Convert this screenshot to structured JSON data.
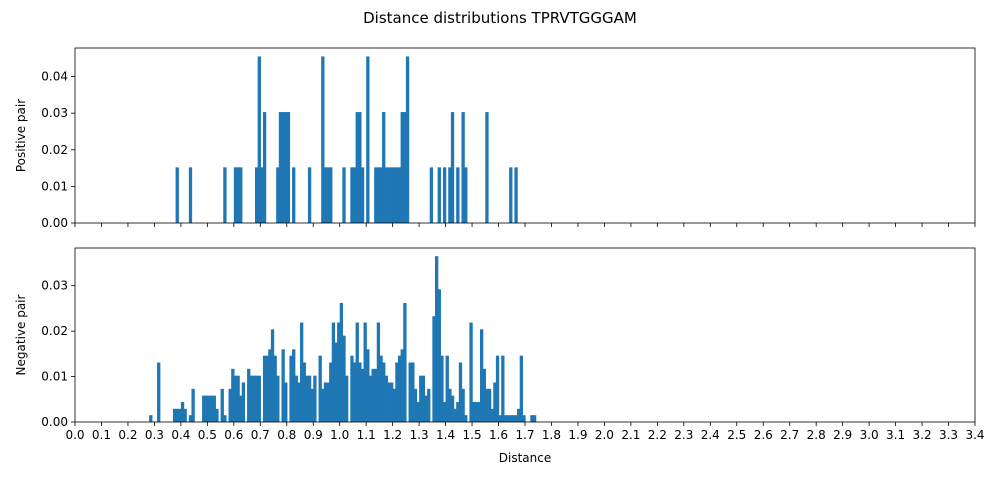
{
  "chart_data": {
    "type": "bar",
    "title": "Distance distributions TPRVTGGGAM",
    "xlabel": "Distance",
    "xlim": [
      0.0,
      3.4
    ],
    "bin_width": 0.0125,
    "bar_color": "#1f77b4",
    "xticks": [
      "0.0",
      "0.1",
      "0.2",
      "0.3",
      "0.4",
      "0.5",
      "0.6",
      "0.7",
      "0.8",
      "0.9",
      "1.0",
      "1.1",
      "1.2",
      "1.3",
      "1.4",
      "1.5",
      "1.6",
      "1.7",
      "1.8",
      "1.9",
      "2.0",
      "2.1",
      "2.2",
      "2.3",
      "2.4",
      "2.5",
      "2.6",
      "2.7",
      "2.8",
      "2.9",
      "3.0",
      "3.1",
      "3.2",
      "3.3",
      "3.4"
    ],
    "panels": [
      {
        "ylabel": "Positive pair",
        "ylim": [
          0,
          0.0478
        ],
        "yticks": [
          "0.00",
          "0.01",
          "0.02",
          "0.03",
          "0.04"
        ],
        "show_xtick_labels": false,
        "bars": [
          [
            0.38,
            0.0152
          ],
          [
            0.43,
            0.0152
          ],
          [
            0.56,
            0.0152
          ],
          [
            0.6,
            0.0152
          ],
          [
            0.61,
            0.0152
          ],
          [
            0.62,
            0.0152
          ],
          [
            0.68,
            0.0152
          ],
          [
            0.69,
            0.0455
          ],
          [
            0.7,
            0.0152
          ],
          [
            0.71,
            0.0303
          ],
          [
            0.76,
            0.0152
          ],
          [
            0.77,
            0.0303
          ],
          [
            0.78,
            0.0303
          ],
          [
            0.79,
            0.0303
          ],
          [
            0.8,
            0.0303
          ],
          [
            0.82,
            0.0152
          ],
          [
            0.88,
            0.0152
          ],
          [
            0.93,
            0.0455
          ],
          [
            0.94,
            0.0152
          ],
          [
            0.95,
            0.0152
          ],
          [
            0.96,
            0.0152
          ],
          [
            1.01,
            0.0152
          ],
          [
            1.04,
            0.0152
          ],
          [
            1.05,
            0.0152
          ],
          [
            1.06,
            0.0303
          ],
          [
            1.07,
            0.0303
          ],
          [
            1.08,
            0.0152
          ],
          [
            1.1,
            0.0455
          ],
          [
            1.13,
            0.0152
          ],
          [
            1.14,
            0.0152
          ],
          [
            1.15,
            0.0152
          ],
          [
            1.16,
            0.0303
          ],
          [
            1.17,
            0.0152
          ],
          [
            1.18,
            0.0152
          ],
          [
            1.19,
            0.0152
          ],
          [
            1.2,
            0.0152
          ],
          [
            1.21,
            0.0152
          ],
          [
            1.22,
            0.0152
          ],
          [
            1.23,
            0.0303
          ],
          [
            1.24,
            0.0303
          ],
          [
            1.25,
            0.0455
          ],
          [
            1.34,
            0.0152
          ],
          [
            1.37,
            0.0152
          ],
          [
            1.39,
            0.0152
          ],
          [
            1.41,
            0.0152
          ],
          [
            1.42,
            0.0303
          ],
          [
            1.44,
            0.0152
          ],
          [
            1.46,
            0.0303
          ],
          [
            1.47,
            0.0152
          ],
          [
            1.55,
            0.0303
          ],
          [
            1.64,
            0.0152
          ],
          [
            1.66,
            0.0152
          ]
        ]
      },
      {
        "ylabel": "Negative pair",
        "ylim": [
          0,
          0.0383
        ],
        "yticks": [
          "0.00",
          "0.01",
          "0.02",
          "0.03"
        ],
        "show_xtick_labels": true,
        "bars": [
          [
            0.28,
            0.0015
          ],
          [
            0.31,
            0.0131
          ],
          [
            0.37,
            0.0029
          ],
          [
            0.38,
            0.0029
          ],
          [
            0.39,
            0.0029
          ],
          [
            0.4,
            0.0044
          ],
          [
            0.41,
            0.0029
          ],
          [
            0.43,
            0.0015
          ],
          [
            0.44,
            0.0073
          ],
          [
            0.48,
            0.0058
          ],
          [
            0.49,
            0.0058
          ],
          [
            0.5,
            0.0058
          ],
          [
            0.51,
            0.0058
          ],
          [
            0.52,
            0.0058
          ],
          [
            0.53,
            0.0029
          ],
          [
            0.55,
            0.0073
          ],
          [
            0.56,
            0.0015
          ],
          [
            0.58,
            0.0073
          ],
          [
            0.59,
            0.0117
          ],
          [
            0.6,
            0.0102
          ],
          [
            0.61,
            0.0102
          ],
          [
            0.62,
            0.0058
          ],
          [
            0.63,
            0.0087
          ],
          [
            0.65,
            0.0117
          ],
          [
            0.66,
            0.0102
          ],
          [
            0.67,
            0.0102
          ],
          [
            0.68,
            0.0102
          ],
          [
            0.69,
            0.0102
          ],
          [
            0.71,
            0.0146
          ],
          [
            0.72,
            0.0146
          ],
          [
            0.73,
            0.016
          ],
          [
            0.74,
            0.0204
          ],
          [
            0.75,
            0.0146
          ],
          [
            0.76,
            0.0102
          ],
          [
            0.78,
            0.016
          ],
          [
            0.79,
            0.0087
          ],
          [
            0.81,
            0.0146
          ],
          [
            0.82,
            0.016
          ],
          [
            0.83,
            0.0102
          ],
          [
            0.84,
            0.0087
          ],
          [
            0.85,
            0.0219
          ],
          [
            0.86,
            0.0131
          ],
          [
            0.87,
            0.0102
          ],
          [
            0.88,
            0.0102
          ],
          [
            0.89,
            0.0073
          ],
          [
            0.9,
            0.0102
          ],
          [
            0.92,
            0.0146
          ],
          [
            0.93,
            0.0073
          ],
          [
            0.94,
            0.0087
          ],
          [
            0.95,
            0.0087
          ],
          [
            0.96,
            0.0131
          ],
          [
            0.97,
            0.0219
          ],
          [
            0.98,
            0.0175
          ],
          [
            0.99,
            0.0219
          ],
          [
            1.0,
            0.0262
          ],
          [
            1.01,
            0.019
          ],
          [
            1.02,
            0.0102
          ],
          [
            1.04,
            0.0146
          ],
          [
            1.05,
            0.0131
          ],
          [
            1.06,
            0.0219
          ],
          [
            1.07,
            0.0131
          ],
          [
            1.08,
            0.0117
          ],
          [
            1.09,
            0.0219
          ],
          [
            1.1,
            0.016
          ],
          [
            1.11,
            0.0102
          ],
          [
            1.12,
            0.0117
          ],
          [
            1.13,
            0.0117
          ],
          [
            1.14,
            0.0219
          ],
          [
            1.15,
            0.0146
          ],
          [
            1.16,
            0.0131
          ],
          [
            1.17,
            0.0102
          ],
          [
            1.18,
            0.0087
          ],
          [
            1.19,
            0.0087
          ],
          [
            1.2,
            0.0073
          ],
          [
            1.21,
            0.0131
          ],
          [
            1.22,
            0.0146
          ],
          [
            1.23,
            0.016
          ],
          [
            1.24,
            0.0262
          ],
          [
            1.26,
            0.0131
          ],
          [
            1.27,
            0.0131
          ],
          [
            1.28,
            0.0073
          ],
          [
            1.29,
            0.0044
          ],
          [
            1.3,
            0.0102
          ],
          [
            1.31,
            0.0102
          ],
          [
            1.32,
            0.0058
          ],
          [
            1.33,
            0.0073
          ],
          [
            1.35,
            0.0233
          ],
          [
            1.36,
            0.0365
          ],
          [
            1.37,
            0.0292
          ],
          [
            1.38,
            0.0146
          ],
          [
            1.39,
            0.0044
          ],
          [
            1.4,
            0.0146
          ],
          [
            1.41,
            0.0073
          ],
          [
            1.42,
            0.0058
          ],
          [
            1.43,
            0.0029
          ],
          [
            1.44,
            0.0044
          ],
          [
            1.45,
            0.0131
          ],
          [
            1.46,
            0.0073
          ],
          [
            1.47,
            0.0015
          ],
          [
            1.49,
            0.0219
          ],
          [
            1.5,
            0.0044
          ],
          [
            1.51,
            0.0044
          ],
          [
            1.52,
            0.0044
          ],
          [
            1.53,
            0.0204
          ],
          [
            1.54,
            0.0117
          ],
          [
            1.55,
            0.0073
          ],
          [
            1.56,
            0.0073
          ],
          [
            1.57,
            0.0029
          ],
          [
            1.58,
            0.0087
          ],
          [
            1.59,
            0.0146
          ],
          [
            1.6,
            0.0015
          ],
          [
            1.61,
            0.0146
          ],
          [
            1.62,
            0.0015
          ],
          [
            1.63,
            0.0015
          ],
          [
            1.64,
            0.0015
          ],
          [
            1.65,
            0.0015
          ],
          [
            1.66,
            0.0015
          ],
          [
            1.67,
            0.0029
          ],
          [
            1.68,
            0.0146
          ],
          [
            1.69,
            0.0015
          ],
          [
            1.72,
            0.0015
          ],
          [
            1.73,
            0.0015
          ]
        ]
      }
    ]
  }
}
